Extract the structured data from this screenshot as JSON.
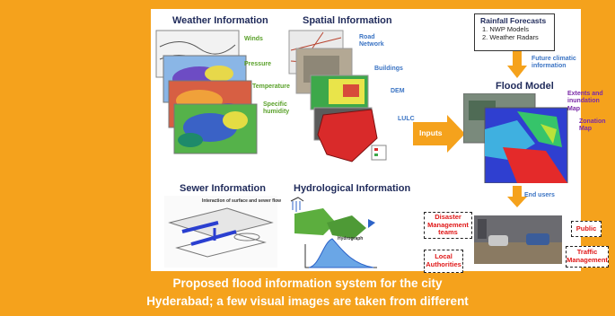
{
  "sections": {
    "weather": "Weather Information",
    "spatial": "Spatial Information",
    "sewer": "Sewer Information",
    "hydrological": "Hydrological Information",
    "flood_model": "Flood Model"
  },
  "weather_labels": [
    "Winds",
    "Pressure",
    "Temperature",
    "Specific humidity"
  ],
  "spatial_labels": {
    "road": "Road Network",
    "buildings": "Buildings",
    "dem": "DEM",
    "lulc": "LULC"
  },
  "sewer_subtitle": "Interaction of surface and sewer flow",
  "hydro_labels": {
    "hydrograph": "Hydrograph"
  },
  "rainfall": {
    "title": "Rainfall Forecasts",
    "items": [
      "1. NWP Models",
      "2. Weather Radars"
    ]
  },
  "flood_labels": {
    "future": "Future climatic information",
    "extents": "Extents and inundation Map",
    "zonation": "Zonation Map"
  },
  "inputs_label": "Inputs",
  "end_users_label": "End users",
  "stakeholders": [
    "Disaster Management teams",
    "Local Authorities",
    "Public",
    "Traffic Management"
  ],
  "caption": [
    "Proposed flood information system for the city",
    "Hyderabad; a few visual images are taken from different"
  ],
  "colors": {
    "background": "#f5a21c",
    "arrow": "#f5a21c",
    "stakeholder_text": "#e01818"
  }
}
